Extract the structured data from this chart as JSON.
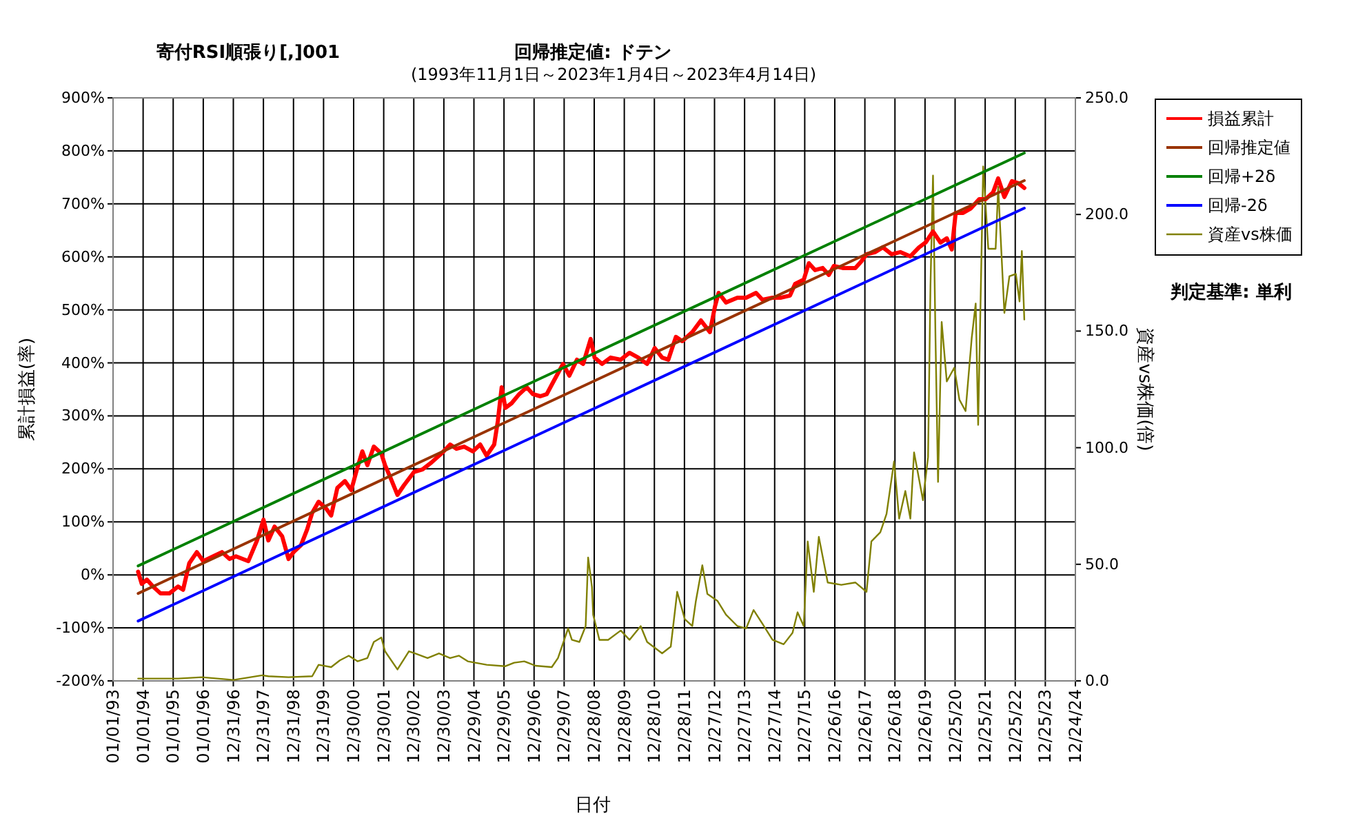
{
  "chart_data": {
    "type": "line",
    "title": "寄付RSI順張り[,]001",
    "subtitle": "(1993年11月1日～2023年1月4日～2023年4月14日)",
    "xlabel": "日付",
    "ylabel": "累計損益(率)",
    "y2label": "資産vs株価(倍)",
    "annotations": [
      "回帰推定値: ドテン",
      "判定基準: 単利"
    ],
    "xlim": [
      "1993-01-01",
      "2024-12-24"
    ],
    "xticks": [
      {
        "value": "1993-01-01",
        "label": "01/01/93"
      },
      {
        "value": "1994-01-01",
        "label": "01/01/94"
      },
      {
        "value": "1995-01-01",
        "label": "01/01/95"
      },
      {
        "value": "1996-01-01",
        "label": "01/01/96"
      },
      {
        "value": "1996-12-31",
        "label": "12/31/96"
      },
      {
        "value": "1997-12-31",
        "label": "12/31/97"
      },
      {
        "value": "1998-12-31",
        "label": "12/31/98"
      },
      {
        "value": "1999-12-31",
        "label": "12/31/99"
      },
      {
        "value": "2000-12-30",
        "label": "12/30/00"
      },
      {
        "value": "2001-12-30",
        "label": "12/30/01"
      },
      {
        "value": "2002-12-30",
        "label": "12/30/02"
      },
      {
        "value": "2003-12-30",
        "label": "12/30/03"
      },
      {
        "value": "2004-12-29",
        "label": "12/29/04"
      },
      {
        "value": "2005-12-29",
        "label": "12/29/05"
      },
      {
        "value": "2006-12-29",
        "label": "12/29/06"
      },
      {
        "value": "2007-12-29",
        "label": "12/29/07"
      },
      {
        "value": "2008-12-28",
        "label": "12/28/08"
      },
      {
        "value": "2009-12-28",
        "label": "12/28/09"
      },
      {
        "value": "2010-12-28",
        "label": "12/28/10"
      },
      {
        "value": "2011-12-28",
        "label": "12/28/11"
      },
      {
        "value": "2012-12-27",
        "label": "12/27/12"
      },
      {
        "value": "2013-12-27",
        "label": "12/27/13"
      },
      {
        "value": "2014-12-27",
        "label": "12/27/14"
      },
      {
        "value": "2015-12-27",
        "label": "12/27/15"
      },
      {
        "value": "2016-12-26",
        "label": "12/26/16"
      },
      {
        "value": "2017-12-26",
        "label": "12/26/17"
      },
      {
        "value": "2018-12-26",
        "label": "12/26/18"
      },
      {
        "value": "2019-12-26",
        "label": "12/26/19"
      },
      {
        "value": "2020-12-25",
        "label": "12/25/20"
      },
      {
        "value": "2021-12-25",
        "label": "12/25/21"
      },
      {
        "value": "2022-12-25",
        "label": "12/25/22"
      },
      {
        "value": "2023-12-25",
        "label": "12/25/23"
      },
      {
        "value": "2024-12-24",
        "label": "12/24/24"
      }
    ],
    "ylim": [
      -200,
      900
    ],
    "yticks": [
      {
        "value": -200,
        "label": "-200%"
      },
      {
        "value": -100,
        "label": "-100%"
      },
      {
        "value": 0,
        "label": "0%"
      },
      {
        "value": 100,
        "label": "100%"
      },
      {
        "value": 200,
        "label": "200%"
      },
      {
        "value": 300,
        "label": "300%"
      },
      {
        "value": 400,
        "label": "400%"
      },
      {
        "value": 500,
        "label": "500%"
      },
      {
        "value": 600,
        "label": "600%"
      },
      {
        "value": 700,
        "label": "700%"
      },
      {
        "value": 800,
        "label": "800%"
      },
      {
        "value": 900,
        "label": "900%"
      }
    ],
    "y2lim": [
      0,
      250
    ],
    "y2ticks": [
      {
        "value": 0,
        "label": "0.0"
      },
      {
        "value": 50,
        "label": "50.0"
      },
      {
        "value": 100,
        "label": "100.0"
      },
      {
        "value": 150,
        "label": "150.0"
      },
      {
        "value": 200,
        "label": "200.0"
      },
      {
        "value": 250,
        "label": "250.0"
      }
    ],
    "grid": true,
    "legend": "right",
    "series": [
      {
        "name": "損益累計",
        "color": "#ff0000",
        "x": [
          "1993-11-01",
          "1993-12-15",
          "1994-02-15",
          "1994-05-01",
          "1994-08-01",
          "1994-11-15",
          "1995-03-01",
          "1995-05-01",
          "1995-07-15",
          "1995-10-15",
          "1996-01-01",
          "1996-05-01",
          "1996-08-15",
          "1996-11-15",
          "1997-02-01",
          "1997-07-01",
          "1997-10-15",
          "1998-01-01",
          "1998-03-01",
          "1998-05-15",
          "1998-08-15",
          "1998-11-01",
          "1999-01-01",
          "1999-04-01",
          "1999-06-15",
          "1999-08-15",
          "1999-11-01",
          "2000-02-01",
          "2000-04-01",
          "2000-06-15",
          "2000-09-15",
          "2000-12-01",
          "2001-02-15",
          "2001-04-15",
          "2001-06-15",
          "2001-09-01",
          "2001-12-01",
          "2002-01-15",
          "2002-03-15",
          "2002-06-15",
          "2002-09-01",
          "2003-01-01",
          "2003-04-15",
          "2003-08-01",
          "2003-12-01",
          "2004-03-15",
          "2004-06-01",
          "2004-09-01",
          "2004-12-15",
          "2005-03-15",
          "2005-06-01",
          "2005-09-01",
          "2005-10-15",
          "2005-12-01",
          "2006-01-15",
          "2006-04-01",
          "2006-07-01",
          "2006-10-01",
          "2006-12-15",
          "2007-03-15",
          "2007-06-01",
          "2007-08-15",
          "2007-12-15",
          "2008-03-01",
          "2008-06-01",
          "2008-08-15",
          "2008-11-15",
          "2009-01-01",
          "2009-04-01",
          "2009-07-15",
          "2009-11-15",
          "2010-03-01",
          "2010-06-15",
          "2010-10-01",
          "2011-01-01",
          "2011-04-01",
          "2011-06-15",
          "2011-09-15",
          "2011-12-01",
          "2012-04-01",
          "2012-07-15",
          "2012-11-01",
          "2013-01-01",
          "2013-02-15",
          "2013-05-15",
          "2013-10-01",
          "2014-01-15",
          "2014-05-15",
          "2014-08-01",
          "2014-12-01",
          "2015-03-15",
          "2015-07-01",
          "2015-09-01",
          "2015-12-15",
          "2016-02-15",
          "2016-05-01",
          "2016-08-01",
          "2016-10-15",
          "2016-12-15",
          "2017-04-01",
          "2017-09-01",
          "2017-11-15",
          "2018-01-15",
          "2018-05-01",
          "2018-08-01",
          "2018-11-15",
          "2019-03-01",
          "2019-07-01",
          "2019-10-15",
          "2020-01-01",
          "2020-04-01",
          "2020-07-01",
          "2020-09-15",
          "2020-11-15",
          "2021-01-01",
          "2021-04-01",
          "2021-07-01",
          "2021-10-15",
          "2022-01-01",
          "2022-04-01",
          "2022-06-01",
          "2022-08-15",
          "2022-11-15",
          "2023-02-01",
          "2023-04-14"
        ],
        "values": [
          6,
          -17,
          -9,
          -22,
          -35,
          -35,
          -22,
          -28,
          22,
          43,
          26,
          35,
          43,
          30,
          35,
          26,
          65,
          104,
          65,
          91,
          73,
          30,
          43,
          56,
          86,
          117,
          138,
          125,
          112,
          164,
          177,
          160,
          203,
          233,
          207,
          242,
          229,
          207,
          186,
          151,
          169,
          194,
          199,
          212,
          229,
          246,
          238,
          242,
          233,
          246,
          225,
          246,
          290,
          354,
          315,
          324,
          341,
          354,
          341,
          337,
          341,
          363,
          398,
          376,
          406,
          398,
          445,
          410,
          398,
          410,
          406,
          419,
          410,
          398,
          428,
          410,
          406,
          449,
          441,
          458,
          480,
          458,
          506,
          532,
          514,
          523,
          523,
          532,
          519,
          523,
          523,
          527,
          549,
          557,
          588,
          575,
          579,
          566,
          583,
          579,
          579,
          592,
          605,
          609,
          618,
          605,
          609,
          601,
          618,
          627,
          648,
          627,
          635,
          614,
          683,
          683,
          691,
          709,
          709,
          722,
          748,
          713,
          743,
          739,
          730
        ]
      },
      {
        "name": "回帰推定値",
        "color": "#993300",
        "x": [
          "1993-11-01",
          "2023-04-14"
        ],
        "values": [
          -35,
          744
        ]
      },
      {
        "name": "回帰+2δ",
        "color": "#008000",
        "x": [
          "1993-11-01",
          "2023-04-14"
        ],
        "values": [
          17,
          796
        ]
      },
      {
        "name": "回帰-2δ",
        "color": "#0000ff",
        "x": [
          "1993-11-01",
          "2023-04-14"
        ],
        "values": [
          -87,
          692
        ]
      },
      {
        "name": "資産vs株価",
        "color": "#808000",
        "axis": "y2",
        "x": [
          "1993-11-01",
          "1995-03-01",
          "1995-12-15",
          "1997-01-01",
          "1997-12-15",
          "1998-03-01",
          "1998-11-01",
          "1999-08-15",
          "1999-11-01",
          "2000-04-01",
          "2000-07-15",
          "2000-11-01",
          "2001-02-15",
          "2001-06-15",
          "2001-09-01",
          "2001-12-01",
          "2002-01-15",
          "2002-06-15",
          "2002-11-01",
          "2003-01-15",
          "2003-06-15",
          "2003-11-01",
          "2004-03-15",
          "2004-07-01",
          "2004-10-15",
          "2005-06-01",
          "2006-01-15",
          "2006-05-01",
          "2006-09-01",
          "2007-01-15",
          "2007-08-01",
          "2007-10-15",
          "2008-02-15",
          "2008-04-01",
          "2008-07-01",
          "2008-09-15",
          "2008-10-15",
          "2008-12-01",
          "2008-12-15",
          "2009-03-01",
          "2009-06-15",
          "2009-11-15",
          "2010-03-01",
          "2010-07-15",
          "2010-10-01",
          "2011-04-01",
          "2011-07-15",
          "2011-10-01",
          "2012-01-01",
          "2012-04-01",
          "2012-05-15",
          "2012-08-01",
          "2012-10-01",
          "2013-02-01",
          "2013-05-15",
          "2013-10-01",
          "2014-01-15",
          "2014-04-15",
          "2014-08-01",
          "2014-12-01",
          "2015-04-15",
          "2015-08-01",
          "2015-10-01",
          "2015-12-15",
          "2016-02-01",
          "2016-04-15",
          "2016-06-15",
          "2016-10-01",
          "2017-03-15",
          "2017-09-01",
          "2018-01-15",
          "2018-03-15",
          "2018-07-01",
          "2018-09-15",
          "2018-12-15",
          "2019-02-15",
          "2019-05-01",
          "2019-07-01",
          "2019-08-15",
          "2019-12-01",
          "2020-02-01",
          "2020-03-01",
          "2020-04-01",
          "2020-05-01",
          "2020-06-01",
          "2020-07-15",
          "2020-09-15",
          "2020-12-15",
          "2021-02-15",
          "2021-05-01",
          "2021-07-15",
          "2021-09-01",
          "2021-10-01",
          "2021-12-01",
          "2022-02-01",
          "2022-05-01",
          "2022-06-01",
          "2022-08-15",
          "2022-10-15",
          "2023-01-01",
          "2023-02-15",
          "2023-03-15",
          "2023-04-14"
        ],
        "values": [
          1,
          1,
          1.6,
          0.4,
          2.4,
          2,
          1.6,
          2,
          6.9,
          5.9,
          8.8,
          10.8,
          8.4,
          9.8,
          16.7,
          18.6,
          12.7,
          4.9,
          12.7,
          11.8,
          9.8,
          11.8,
          9.8,
          10.8,
          8.4,
          6.9,
          6.3,
          7.8,
          8.4,
          6.5,
          5.9,
          9.8,
          22.5,
          17.6,
          16.7,
          23.5,
          52.9,
          40.2,
          28.4,
          17.6,
          17.6,
          21.6,
          17.6,
          23.5,
          16.7,
          11.8,
          14.7,
          38.2,
          26.5,
          23.5,
          34.3,
          49.6,
          37.3,
          34.3,
          28.4,
          23.5,
          22.5,
          30.4,
          24.5,
          17.6,
          15.7,
          20.6,
          29.4,
          23.5,
          59.8,
          38.2,
          61.8,
          42.2,
          41.2,
          42.2,
          38.2,
          59.8,
          63.7,
          71.6,
          94.1,
          69.6,
          81.4,
          69.6,
          98,
          77.5,
          96,
          169.6,
          216.7,
          147.1,
          85.3,
          153.9,
          128.4,
          134.3,
          120.6,
          115.7,
          147.1,
          161.8,
          109.8,
          220.6,
          185.3,
          185.3,
          211.8,
          157.8,
          173.5,
          174.5,
          162.7,
          184.3,
          154.9
        ]
      }
    ]
  }
}
